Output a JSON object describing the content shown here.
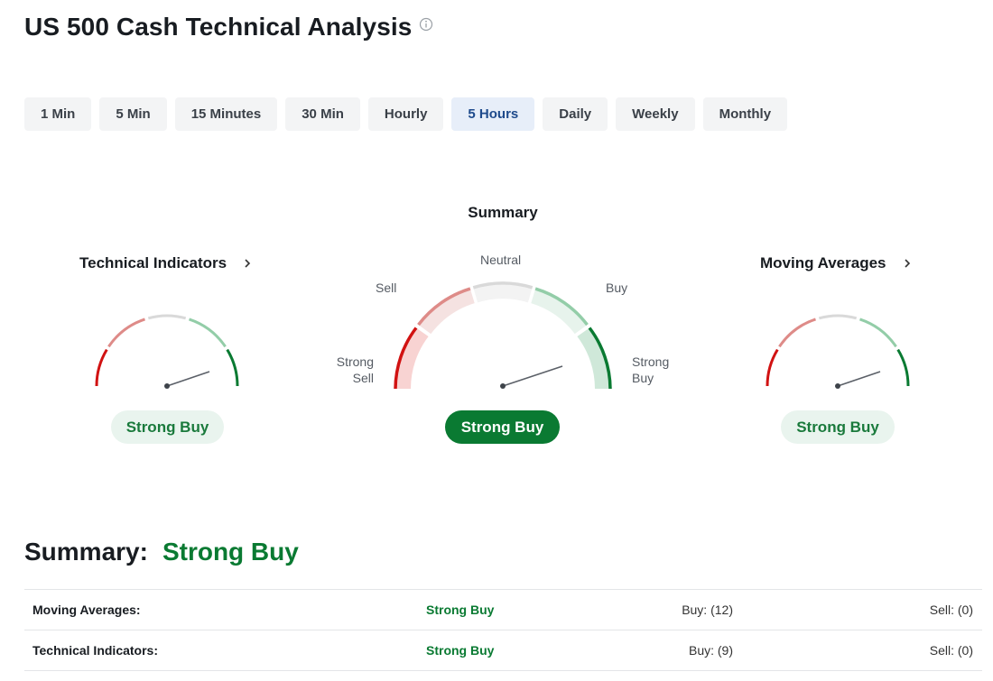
{
  "page": {
    "title": "US 500 Cash Technical Analysis"
  },
  "timeframes": [
    "1 Min",
    "5 Min",
    "15 Minutes",
    "30 Min",
    "Hourly",
    "5 Hours",
    "Daily",
    "Weekly",
    "Monthly"
  ],
  "selected_timeframe": "5 Hours",
  "gauges": {
    "technical_indicators": {
      "title": "Technical Indicators",
      "rating": "Strong Buy"
    },
    "summary": {
      "title": "Summary",
      "rating": "Strong Buy",
      "labels": {
        "strong_sell": "Strong\nSell",
        "sell": "Sell",
        "neutral": "Neutral",
        "buy": "Buy",
        "strong_buy": "Strong\nBuy"
      }
    },
    "moving_averages": {
      "title": "Moving Averages",
      "rating": "Strong Buy"
    }
  },
  "summary_section": {
    "label": "Summary:",
    "value": "Strong Buy",
    "rows": [
      {
        "name": "Moving Averages:",
        "rating": "Strong Buy",
        "buy": "Buy: (12)",
        "sell": "Sell: (0)"
      },
      {
        "name": "Technical Indicators:",
        "rating": "Strong Buy",
        "buy": "Buy: (9)",
        "sell": "Sell: (0)"
      }
    ]
  },
  "colors": {
    "strong_sell": "#d11212",
    "sell": "#de8b88",
    "neutral": "#d9d9d9",
    "buy": "#93cda8",
    "strong_buy": "#0a7a32",
    "active_tab_bg": "#e7eef9"
  },
  "icons": {
    "info": "info-circle-icon",
    "chevron": "chevron-right-icon"
  }
}
